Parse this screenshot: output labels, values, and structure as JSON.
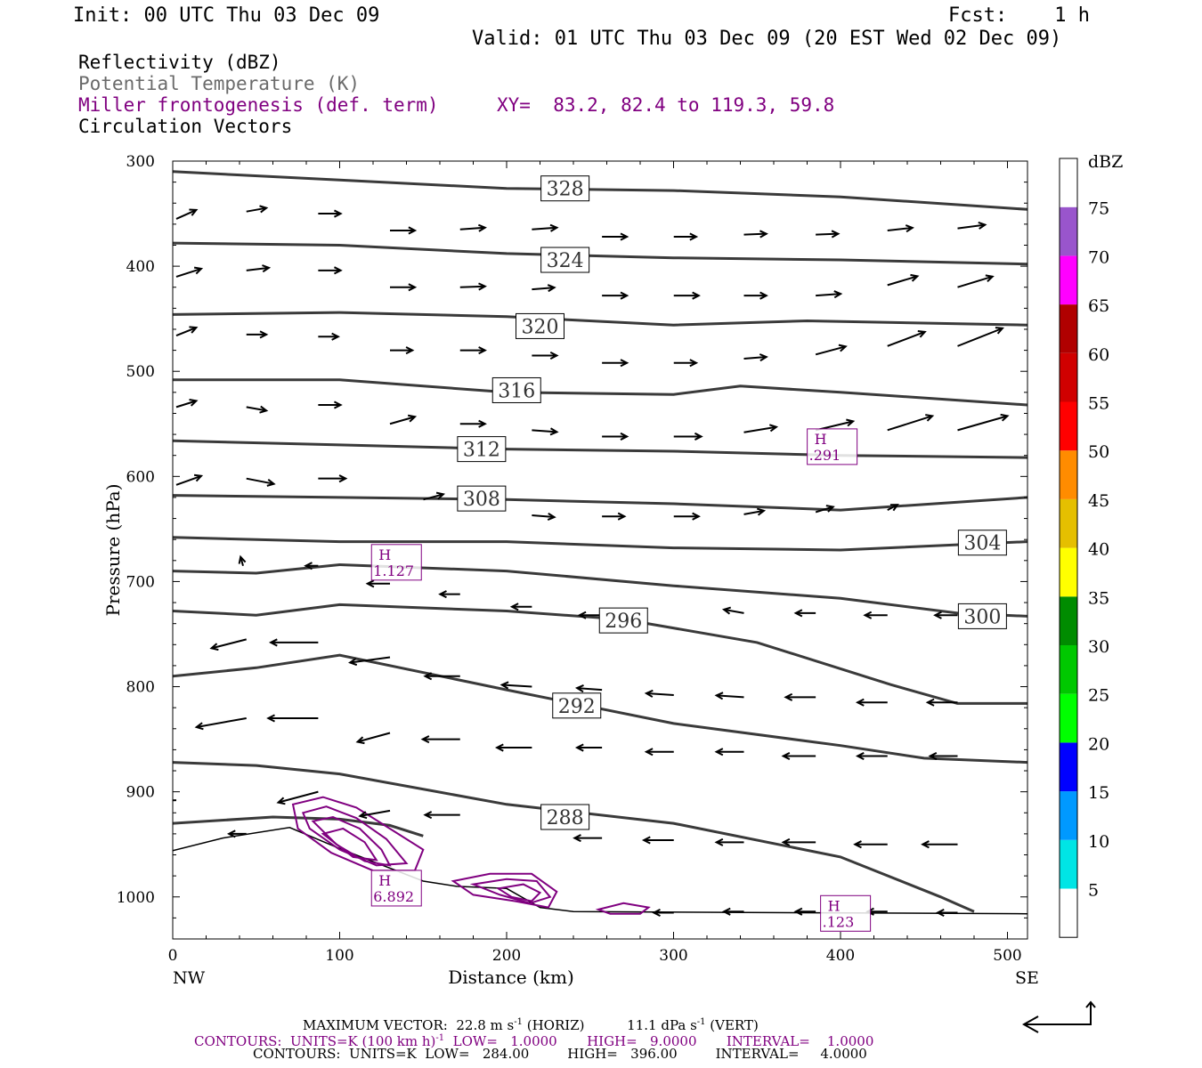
{
  "header": {
    "init": "Init: 00 UTC Thu 03 Dec 09",
    "fcst": "Fcst:    1 h",
    "valid": "Valid: 01 UTC Thu 03 Dec 09 (20 EST Wed 02 Dec 09)"
  },
  "legend": {
    "reflectivity": "Reflectivity (dBZ)",
    "theta": "Potential Temperature (K)",
    "miller": "Miller frontogenesis (def. term)",
    "xy": "XY=  83.2, 82.4 to 119.3, 59.8",
    "vectors": "Circulation Vectors"
  },
  "colors": {
    "theta": "#3a3a3a",
    "miller": "#800080",
    "vector": "#000000",
    "ground": "#000000"
  },
  "chart_data": {
    "type": "line",
    "xlabel": "Distance (km)",
    "ylabel": "Pressure (hPa)",
    "xlim": [
      0,
      512
    ],
    "ylim": [
      1040,
      300
    ],
    "xticks": [
      0,
      100,
      200,
      300,
      400,
      500
    ],
    "yticks": [
      300,
      400,
      500,
      600,
      700,
      800,
      900,
      1000
    ],
    "x_end_labels": {
      "left": "NW",
      "right": "SE"
    },
    "theta_contours": [
      {
        "value": 328,
        "label": "328",
        "label_at": [
          235,
          326
        ],
        "points": [
          [
            0,
            310
          ],
          [
            100,
            318
          ],
          [
            200,
            326
          ],
          [
            300,
            328
          ],
          [
            400,
            334
          ],
          [
            512,
            346
          ]
        ]
      },
      {
        "value": 324,
        "label": "324",
        "label_at": [
          235,
          394
        ],
        "points": [
          [
            0,
            378
          ],
          [
            100,
            380
          ],
          [
            200,
            388
          ],
          [
            300,
            392
          ],
          [
            400,
            394
          ],
          [
            512,
            398
          ]
        ]
      },
      {
        "value": 320,
        "label": "320",
        "label_at": [
          220,
          457
        ],
        "points": [
          [
            0,
            446
          ],
          [
            100,
            444
          ],
          [
            200,
            448
          ],
          [
            300,
            456
          ],
          [
            380,
            452
          ],
          [
            512,
            456
          ]
        ]
      },
      {
        "value": 316,
        "label": "316",
        "label_at": [
          206,
          518
        ],
        "points": [
          [
            0,
            508
          ],
          [
            100,
            508
          ],
          [
            200,
            520
          ],
          [
            300,
            522
          ],
          [
            340,
            514
          ],
          [
            400,
            520
          ],
          [
            512,
            532
          ]
        ]
      },
      {
        "value": 312,
        "label": "312",
        "label_at": [
          185,
          574
        ],
        "points": [
          [
            0,
            566
          ],
          [
            100,
            570
          ],
          [
            200,
            574
          ],
          [
            300,
            576
          ],
          [
            400,
            580
          ],
          [
            512,
            582
          ]
        ]
      },
      {
        "value": 308,
        "label": "308",
        "label_at": [
          185,
          621
        ],
        "points": [
          [
            0,
            618
          ],
          [
            100,
            620
          ],
          [
            200,
            622
          ],
          [
            300,
            626
          ],
          [
            400,
            632
          ],
          [
            512,
            620
          ]
        ]
      },
      {
        "value": 304,
        "label": "304",
        "label_at": [
          485,
          663
        ],
        "points": [
          [
            0,
            658
          ],
          [
            100,
            662
          ],
          [
            200,
            662
          ],
          [
            300,
            668
          ],
          [
            400,
            670
          ],
          [
            512,
            662
          ]
        ]
      },
      {
        "value": 300,
        "label": "300",
        "label_at": [
          485,
          733
        ],
        "points": [
          [
            0,
            690
          ],
          [
            50,
            692
          ],
          [
            100,
            684
          ],
          [
            200,
            690
          ],
          [
            300,
            704
          ],
          [
            400,
            716
          ],
          [
            470,
            730
          ],
          [
            512,
            733
          ]
        ]
      },
      {
        "value": 296,
        "label": "296",
        "label_at": [
          270,
          737
        ],
        "points": [
          [
            0,
            728
          ],
          [
            50,
            732
          ],
          [
            100,
            722
          ],
          [
            200,
            728
          ],
          [
            270,
            736
          ],
          [
            350,
            758
          ],
          [
            430,
            798
          ],
          [
            470,
            816
          ],
          [
            512,
            816
          ]
        ]
      },
      {
        "value": 292,
        "label": "292",
        "label_at": [
          242,
          818
        ],
        "points": [
          [
            0,
            790
          ],
          [
            50,
            782
          ],
          [
            100,
            770
          ],
          [
            200,
            803
          ],
          [
            300,
            835
          ],
          [
            400,
            856
          ],
          [
            450,
            868
          ],
          [
            512,
            872
          ]
        ]
      },
      {
        "value": 288,
        "label": "288",
        "label_at": [
          235,
          924
        ],
        "points": [
          [
            0,
            872
          ],
          [
            50,
            875
          ],
          [
            100,
            883
          ],
          [
            200,
            912
          ],
          [
            300,
            930
          ],
          [
            400,
            962
          ],
          [
            460,
            1000
          ],
          [
            480,
            1014
          ]
        ]
      },
      {
        "value": 284,
        "label": "",
        "points": [
          [
            0,
            930
          ],
          [
            60,
            924
          ],
          [
            100,
            926
          ],
          [
            130,
            932
          ],
          [
            150,
            942
          ]
        ]
      }
    ],
    "ground_surface": [
      [
        0,
        956
      ],
      [
        30,
        944
      ],
      [
        70,
        934
      ],
      [
        100,
        954
      ],
      [
        150,
        985
      ],
      [
        170,
        990
      ],
      [
        200,
        992
      ],
      [
        220,
        1010
      ],
      [
        240,
        1014
      ],
      [
        512,
        1016
      ]
    ],
    "frontogenesis_maxima": [
      {
        "label": "H",
        "value": "6.892",
        "at": [
          134,
          990
        ]
      },
      {
        "label": "H",
        "value": "1.127",
        "at": [
          134,
          680
        ]
      },
      {
        "label": "H",
        "value": ".291",
        "at": [
          395,
          570
        ]
      },
      {
        "label": "H",
        "value": ".123",
        "at": [
          403,
          1014
        ]
      }
    ],
    "frontogenesis_contours_units": "K (100 km h)^-1",
    "theta_contour_units": "K",
    "reflectivity_colorbar": {
      "unit": "dBZ",
      "levels": [
        "5",
        "10",
        "15",
        "20",
        "25",
        "30",
        "35",
        "40",
        "45",
        "50",
        "55",
        "60",
        "65",
        "70",
        "75"
      ],
      "colors": [
        "#ffffff",
        "#00e5e5",
        "#0099ff",
        "#0000ff",
        "#00ff00",
        "#00c800",
        "#008c00",
        "#ffff00",
        "#e5bf00",
        "#ff8c00",
        "#ff0000",
        "#d00000",
        "#b00000",
        "#ff00ff",
        "#9955cc",
        "#ffffff"
      ]
    },
    "vectors": [
      [
        0,
        355,
        16,
        -10
      ],
      [
        42,
        348,
        16,
        -4
      ],
      [
        85,
        350,
        18,
        0
      ],
      [
        128,
        366,
        20,
        0
      ],
      [
        170,
        365,
        20,
        -2
      ],
      [
        213,
        365,
        20,
        -2
      ],
      [
        255,
        372,
        20,
        0
      ],
      [
        298,
        372,
        18,
        0
      ],
      [
        340,
        370,
        18,
        -1
      ],
      [
        383,
        370,
        18,
        -1
      ],
      [
        426,
        366,
        20,
        -3
      ],
      [
        468,
        364,
        22,
        -4
      ],
      [
        0,
        410,
        20,
        -9
      ],
      [
        42,
        404,
        18,
        -3
      ],
      [
        85,
        404,
        18,
        0
      ],
      [
        128,
        420,
        20,
        0
      ],
      [
        170,
        420,
        20,
        -1
      ],
      [
        213,
        422,
        18,
        -2
      ],
      [
        255,
        428,
        20,
        0
      ],
      [
        298,
        428,
        20,
        0
      ],
      [
        340,
        428,
        18,
        0
      ],
      [
        383,
        428,
        20,
        -2
      ],
      [
        426,
        418,
        24,
        -10
      ],
      [
        468,
        420,
        28,
        -12
      ],
      [
        0,
        466,
        16,
        -9
      ],
      [
        42,
        465,
        16,
        0
      ],
      [
        85,
        467,
        16,
        0
      ],
      [
        128,
        480,
        18,
        0
      ],
      [
        170,
        480,
        20,
        0
      ],
      [
        213,
        485,
        20,
        0
      ],
      [
        255,
        492,
        20,
        0
      ],
      [
        298,
        492,
        18,
        0
      ],
      [
        340,
        488,
        18,
        -2
      ],
      [
        383,
        484,
        24,
        -9
      ],
      [
        426,
        476,
        30,
        -16
      ],
      [
        468,
        476,
        36,
        -20
      ],
      [
        0,
        534,
        16,
        -7
      ],
      [
        42,
        534,
        16,
        4
      ],
      [
        85,
        532,
        18,
        0
      ],
      [
        128,
        550,
        20,
        -8
      ],
      [
        170,
        550,
        20,
        0
      ],
      [
        213,
        556,
        20,
        2
      ],
      [
        255,
        562,
        20,
        0
      ],
      [
        298,
        562,
        22,
        0
      ],
      [
        340,
        558,
        26,
        -6
      ],
      [
        383,
        556,
        30,
        -10
      ],
      [
        426,
        556,
        36,
        -16
      ],
      [
        468,
        556,
        40,
        -16
      ],
      [
        0,
        608,
        20,
        -10
      ],
      [
        42,
        602,
        22,
        6
      ],
      [
        85,
        602,
        22,
        0
      ],
      [
        148,
        622,
        16,
        -6
      ],
      [
        213,
        637,
        18,
        2
      ],
      [
        255,
        638,
        18,
        0
      ],
      [
        298,
        638,
        20,
        0
      ],
      [
        340,
        636,
        16,
        -4
      ],
      [
        383,
        634,
        14,
        -6
      ],
      [
        426,
        632,
        8,
        -6
      ],
      [
        40,
        685,
        -2,
        -10
      ],
      [
        85,
        685,
        -10,
        0
      ],
      [
        128,
        702,
        -18,
        0
      ],
      [
        170,
        712,
        -16,
        0
      ],
      [
        213,
        724,
        -16,
        0
      ],
      [
        255,
        732,
        -18,
        0
      ],
      [
        340,
        730,
        -16,
        -4
      ],
      [
        383,
        730,
        -16,
        0
      ],
      [
        426,
        732,
        -18,
        0
      ],
      [
        468,
        732,
        -18,
        0
      ],
      [
        42,
        755,
        -28,
        10
      ],
      [
        85,
        758,
        -38,
        0
      ],
      [
        128,
        772,
        -32,
        6
      ],
      [
        170,
        790,
        -28,
        0
      ],
      [
        213,
        800,
        -24,
        -2
      ],
      [
        255,
        803,
        -20,
        -2
      ],
      [
        298,
        808,
        -22,
        -2
      ],
      [
        340,
        810,
        -22,
        -2
      ],
      [
        383,
        810,
        -24,
        0
      ],
      [
        426,
        815,
        -24,
        0
      ],
      [
        468,
        815,
        -24,
        0
      ],
      [
        42,
        830,
        -40,
        10
      ],
      [
        85,
        830,
        -40,
        0
      ],
      [
        128,
        844,
        -26,
        10
      ],
      [
        170,
        850,
        -30,
        0
      ],
      [
        213,
        858,
        -28,
        0
      ],
      [
        255,
        858,
        -20,
        0
      ],
      [
        298,
        862,
        -22,
        0
      ],
      [
        340,
        862,
        -22,
        0
      ],
      [
        383,
        866,
        -26,
        0
      ],
      [
        426,
        866,
        -24,
        0
      ],
      [
        468,
        866,
        -22,
        0
      ],
      [
        0,
        908,
        -38,
        2
      ],
      [
        85,
        900,
        -32,
        12
      ],
      [
        128,
        918,
        -24,
        6
      ],
      [
        170,
        922,
        -28,
        0
      ],
      [
        255,
        944,
        -22,
        0
      ],
      [
        298,
        946,
        -24,
        0
      ],
      [
        340,
        948,
        -22,
        0
      ],
      [
        383,
        948,
        -26,
        0
      ],
      [
        426,
        950,
        -26,
        0
      ],
      [
        468,
        950,
        -28,
        0
      ],
      [
        42,
        940,
        -14,
        0
      ],
      [
        298,
        1015,
        -16,
        0
      ],
      [
        340,
        1014,
        -16,
        0
      ],
      [
        383,
        1014,
        -16,
        0
      ],
      [
        426,
        1014,
        -16,
        0
      ],
      [
        468,
        1015,
        -16,
        0
      ]
    ]
  },
  "footer": {
    "max_vector_label": "MAXIMUM VECTOR:  22.8 m s",
    "max_vector_exp1": "-1",
    "max_vector_horiz": " (HORIZ)",
    "max_vector_vert": "11.1 dPa s",
    "max_vector_exp2": "-1",
    "max_vector_vert2": " (VERT)",
    "miller_contours": "CONTOURS:  UNITS=K (100 km h)",
    "miller_exp": "-1",
    "miller_rest": "  LOW=   1.0000       HIGH=   9.0000       INTERVAL=    1.0000",
    "theta_contours": "CONTOURS:  UNITS=K  LOW=   284.00         HIGH=   396.00         INTERVAL=     4.0000"
  }
}
